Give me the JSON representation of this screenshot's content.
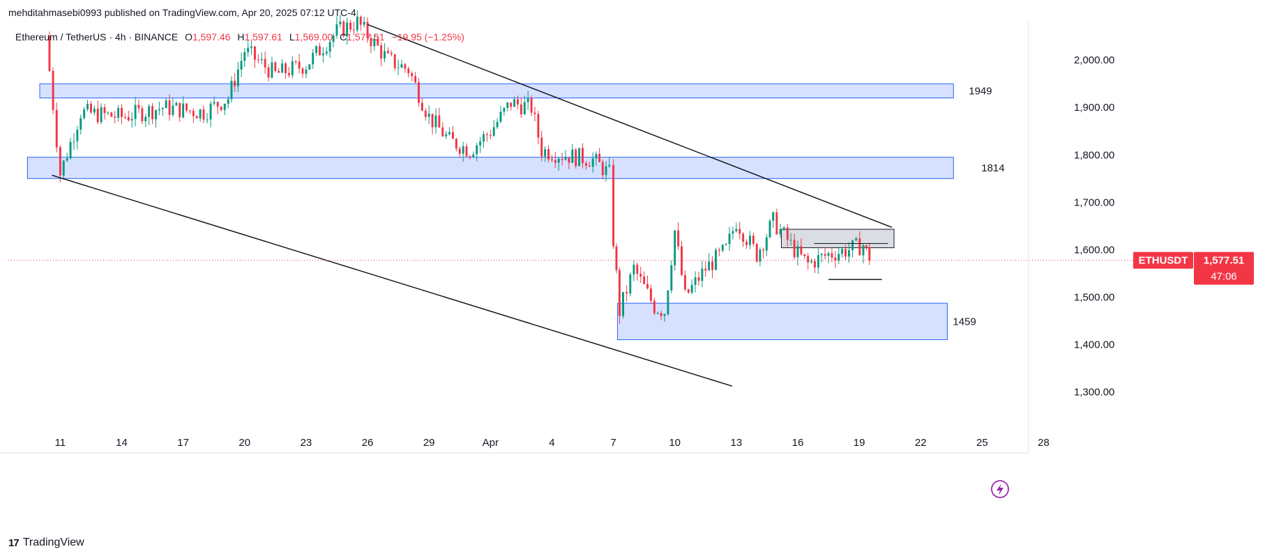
{
  "header": {
    "publisher_line": "mehditahmasebi0993 published on TradingView.com, Apr 20, 2025 07:12 UTC-4"
  },
  "legend": {
    "symbol": "Ethereum / TetherUS · 4h · BINANCE",
    "o_key": "O",
    "o_val": "1,597.46",
    "h_key": "H",
    "h_val": "1,597.61",
    "l_key": "L",
    "l_val": "1,569.00",
    "c_key": "C",
    "c_val": "1,577.51",
    "change": "−19.95 (−1.25%)"
  },
  "price_tag": {
    "ticker": "ETHUSDT",
    "price": "1,577.51",
    "countdown": "47:06"
  },
  "footer": {
    "brand": "TradingView"
  },
  "colors": {
    "up": "#089981",
    "down": "#f23645",
    "zone_fill": "#d6e1ff",
    "zone_stroke": "#2962ff",
    "trend": "#131722",
    "grey_zone": "#d1d4dc"
  },
  "chart_data": {
    "type": "candlestick",
    "yaxis": {
      "min": 1230,
      "max": 2090,
      "ticks": [
        2000,
        1900,
        1800,
        1700,
        1600,
        1500,
        1400,
        1300
      ],
      "tick_labels": [
        "2,000.00",
        "1,900.00",
        "1,800.00",
        "1,700.00",
        "1,600.00",
        "1,500.00",
        "1,400.00",
        "1,300.00"
      ]
    },
    "xaxis": {
      "start_day": 10.0,
      "end_day": 48.5,
      "ticks": [
        {
          "day": 11,
          "label": "11"
        },
        {
          "day": 14,
          "label": "14"
        },
        {
          "day": 17,
          "label": "17"
        },
        {
          "day": 20,
          "label": "20"
        },
        {
          "day": 23,
          "label": "23"
        },
        {
          "day": 26,
          "label": "26"
        },
        {
          "day": 29,
          "label": "29"
        },
        {
          "day": 32,
          "label": "Apr"
        },
        {
          "day": 35,
          "label": "4"
        },
        {
          "day": 38,
          "label": "7"
        },
        {
          "day": 41,
          "label": "10"
        },
        {
          "day": 44,
          "label": "13"
        },
        {
          "day": 47,
          "label": "16"
        },
        {
          "day": 50,
          "label": "19"
        },
        {
          "day": 53,
          "label": "22"
        },
        {
          "day": 56,
          "label": "25"
        },
        {
          "day": 59,
          "label": "28"
        }
      ]
    },
    "last_price": 1577.51,
    "anchors": [
      {
        "day": 10.3,
        "price": 2050
      },
      {
        "day": 11.0,
        "price": 1760
      },
      {
        "day": 12.0,
        "price": 1890
      },
      {
        "day": 14.0,
        "price": 1880
      },
      {
        "day": 16.0,
        "price": 1900
      },
      {
        "day": 18.0,
        "price": 1890
      },
      {
        "day": 19.2,
        "price": 1920
      },
      {
        "day": 20.0,
        "price": 2020
      },
      {
        "day": 21.5,
        "price": 1970
      },
      {
        "day": 23.0,
        "price": 1990
      },
      {
        "day": 24.5,
        "price": 2060
      },
      {
        "day": 25.5,
        "price": 2080
      },
      {
        "day": 27.0,
        "price": 2000
      },
      {
        "day": 28.0,
        "price": 1980
      },
      {
        "day": 29.0,
        "price": 1880
      },
      {
        "day": 30.0,
        "price": 1830
      },
      {
        "day": 31.0,
        "price": 1810
      },
      {
        "day": 32.0,
        "price": 1850
      },
      {
        "day": 33.0,
        "price": 1910
      },
      {
        "day": 34.0,
        "price": 1900
      },
      {
        "day": 34.5,
        "price": 1810
      },
      {
        "day": 35.5,
        "price": 1800
      },
      {
        "day": 37.0,
        "price": 1790
      },
      {
        "day": 37.8,
        "price": 1760
      },
      {
        "day": 38.0,
        "price": 1620
      },
      {
        "day": 38.3,
        "price": 1470
      },
      {
        "day": 39.0,
        "price": 1560
      },
      {
        "day": 40.0,
        "price": 1480
      },
      {
        "day": 40.5,
        "price": 1470
      },
      {
        "day": 41.0,
        "price": 1640
      },
      {
        "day": 41.5,
        "price": 1500
      },
      {
        "day": 42.5,
        "price": 1560
      },
      {
        "day": 43.5,
        "price": 1600
      },
      {
        "day": 44.0,
        "price": 1660
      },
      {
        "day": 45.0,
        "price": 1590
      },
      {
        "day": 45.8,
        "price": 1660
      },
      {
        "day": 46.5,
        "price": 1620
      },
      {
        "day": 47.0,
        "price": 1590
      },
      {
        "day": 47.5,
        "price": 1570
      },
      {
        "day": 48.5,
        "price": 1590
      },
      {
        "day": 49.5,
        "price": 1600
      },
      {
        "day": 50.2,
        "price": 1610
      },
      {
        "day": 50.5,
        "price": 1577.51
      }
    ],
    "zones": [
      {
        "label": "1949",
        "from_day": 10.0,
        "to_day": 54.6,
        "low": 1920,
        "high": 1950
      },
      {
        "label": "1814",
        "from_day": 9.4,
        "to_day": 54.6,
        "low": 1750,
        "high": 1795
      },
      {
        "label": "1459",
        "from_day": 38.2,
        "to_day": 54.3,
        "low": 1410,
        "high": 1487
      },
      {
        "label": "",
        "from_day": 46.2,
        "to_day": 51.7,
        "low": 1604,
        "high": 1643
      }
    ],
    "trendlines": [
      {
        "from": {
          "day": 26.0,
          "price": 2075
        },
        "to": {
          "day": 51.6,
          "price": 1647
        }
      },
      {
        "from": {
          "day": 10.6,
          "price": 1757
        },
        "to": {
          "day": 43.8,
          "price": 1312
        }
      }
    ],
    "support_line": {
      "from_day": 48.5,
      "to_day": 51.1,
      "price": 1537
    },
    "resistance_tick": {
      "from_day": 47.8,
      "to_day": 51.4,
      "price": 1613
    }
  }
}
